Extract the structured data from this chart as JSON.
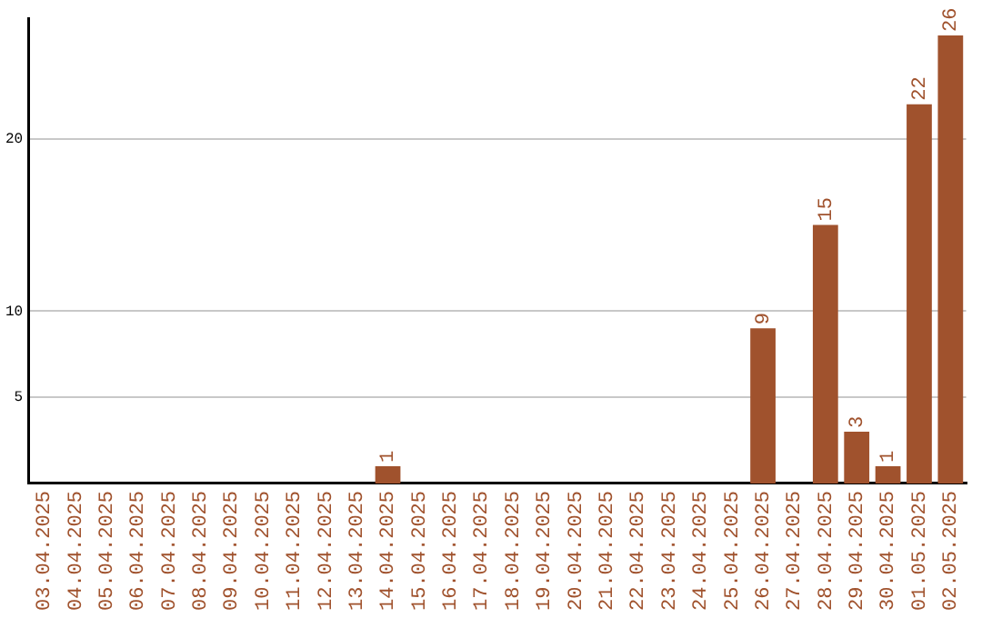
{
  "chart_data": {
    "type": "bar",
    "categories": [
      "03.04.2025",
      "04.04.2025",
      "05.04.2025",
      "06.04.2025",
      "07.04.2025",
      "08.04.2025",
      "09.04.2025",
      "10.04.2025",
      "11.04.2025",
      "12.04.2025",
      "13.04.2025",
      "14.04.2025",
      "15.04.2025",
      "16.04.2025",
      "17.04.2025",
      "18.04.2025",
      "19.04.2025",
      "20.04.2025",
      "21.04.2025",
      "22.04.2025",
      "23.04.2025",
      "24.04.2025",
      "25.04.2025",
      "26.04.2025",
      "27.04.2025",
      "28.04.2025",
      "29.04.2025",
      "30.04.2025",
      "01.05.2025",
      "02.05.2025"
    ],
    "values": [
      0,
      0,
      0,
      0,
      0,
      0,
      0,
      0,
      0,
      0,
      0,
      1,
      0,
      0,
      0,
      0,
      0,
      0,
      0,
      0,
      0,
      0,
      0,
      9,
      0,
      15,
      3,
      1,
      22,
      26
    ],
    "value_labels": [
      null,
      null,
      null,
      null,
      null,
      null,
      null,
      null,
      null,
      null,
      null,
      "1",
      null,
      null,
      null,
      null,
      null,
      null,
      null,
      null,
      null,
      null,
      null,
      "9",
      null,
      "15",
      "3",
      "1",
      "22",
      "26"
    ],
    "color": "#a0522d",
    "ylim": [
      0,
      27
    ],
    "yticks": [
      5,
      10,
      20
    ],
    "grid": "y",
    "legend": false
  }
}
